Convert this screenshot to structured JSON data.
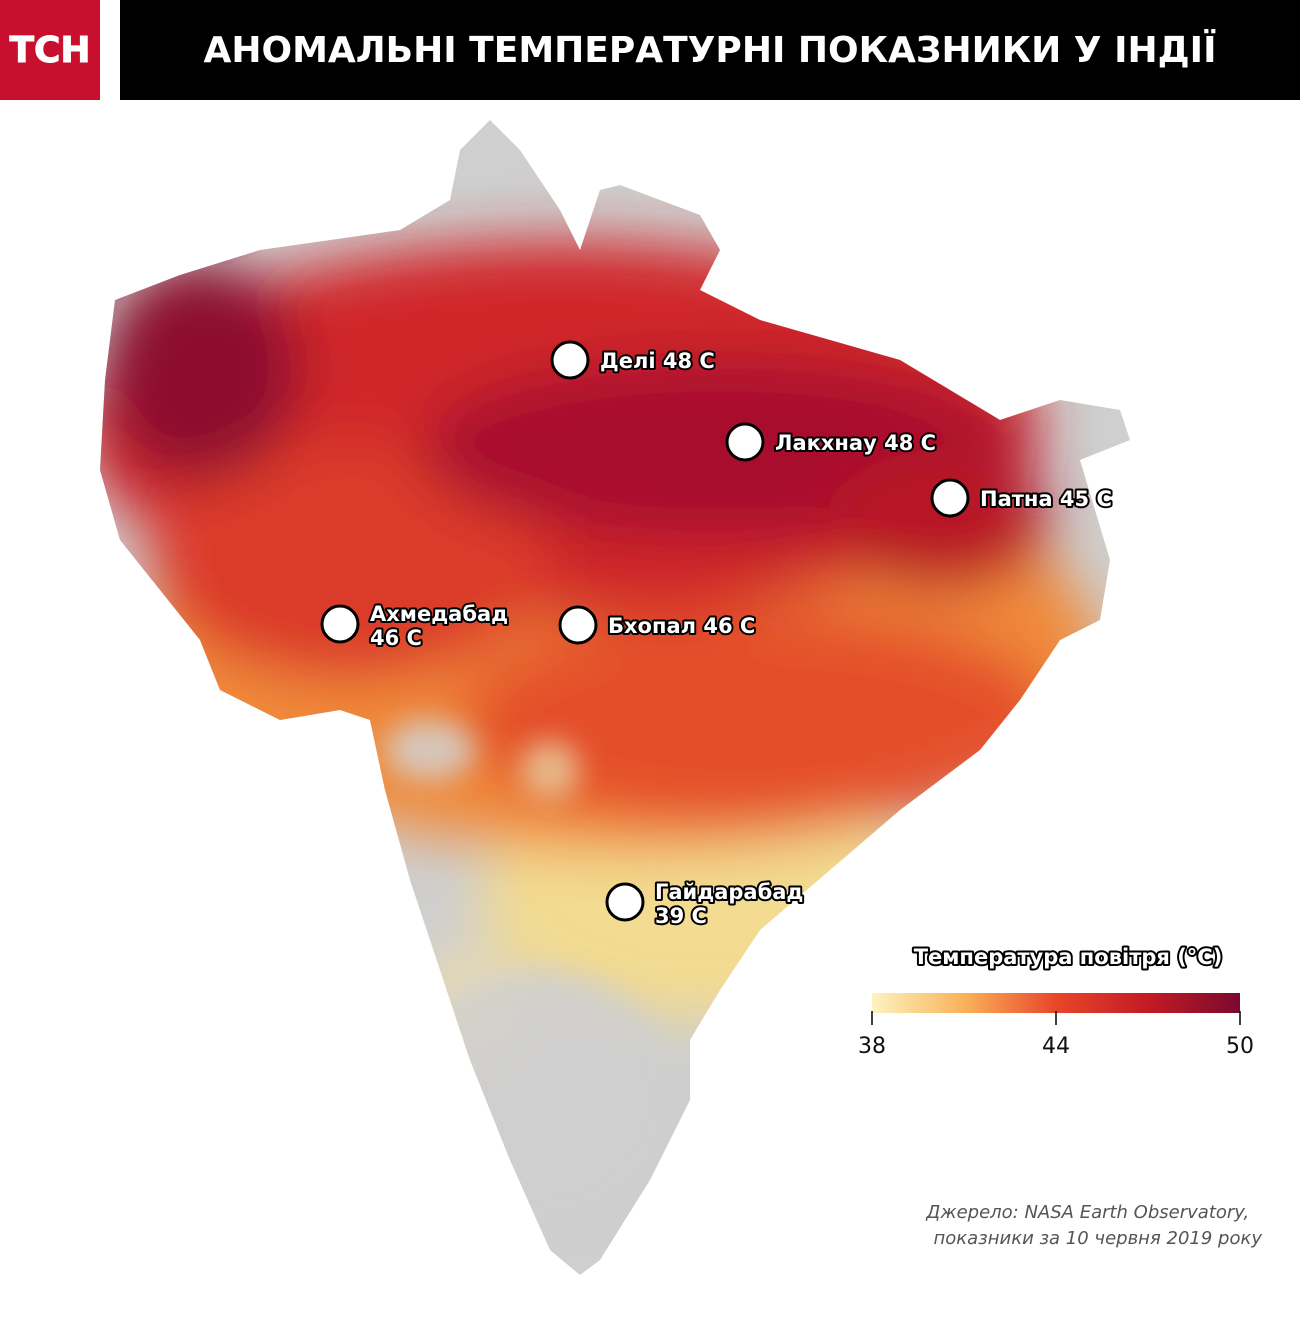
{
  "header": {
    "logo": "ТСН",
    "title": "АНОМАЛЬНІ ТЕМПЕРАТУРНІ ПОКАЗНИКИ У ІНДІЇ"
  },
  "cities": [
    {
      "lines": [
        "Делі 48 С"
      ]
    },
    {
      "lines": [
        "Лакхнау 48 С"
      ]
    },
    {
      "lines": [
        "Патна 45 С"
      ]
    },
    {
      "lines": [
        "Ахмедабад",
        "46 С"
      ]
    },
    {
      "lines": [
        "Бхопал 46 С"
      ]
    },
    {
      "lines": [
        "Гайдарабад",
        "39 С"
      ]
    }
  ],
  "legend": {
    "title": "Температура повітря (°C)",
    "range": [
      38,
      50
    ],
    "ticks": [
      38,
      44,
      50
    ],
    "colors": [
      "#fdf3c0",
      "#f9b25a",
      "#e9462a",
      "#c41a25",
      "#7a0a2e"
    ]
  },
  "source": {
    "lines": [
      "Джерело: NASA Earth Observatory,",
      "показники за 10 червня 2019 року"
    ]
  }
}
